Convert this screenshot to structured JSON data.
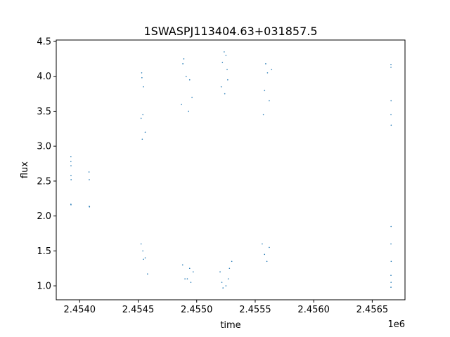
{
  "chart_data": {
    "type": "scatter",
    "title": "1SWASPJ113404.63+031857.5",
    "xlabel": "time",
    "ylabel": "flux",
    "x_offset_label": "1e6",
    "xlim": [
      2453800,
      2456780
    ],
    "ylim": [
      0.8,
      4.52
    ],
    "x_ticks": [
      2454000,
      2454500,
      2455000,
      2455500,
      2456000,
      2456500
    ],
    "x_tick_labels": [
      "2.4540",
      "2.4545",
      "2.4550",
      "2.4555",
      "2.4560",
      "2.4565"
    ],
    "y_ticks": [
      1.0,
      1.5,
      2.0,
      2.5,
      3.0,
      3.5,
      4.0,
      4.5
    ],
    "y_tick_labels": [
      "1.0",
      "1.5",
      "2.0",
      "2.5",
      "3.0",
      "3.5",
      "4.0",
      "4.5"
    ],
    "grid": false,
    "legend": "none",
    "series": [
      {
        "color": "#1f77b4",
        "points": [
          [
            2453925,
            2.85
          ],
          [
            2453925,
            2.78
          ],
          [
            2453926,
            2.72
          ],
          [
            2453926,
            2.58
          ],
          [
            2453927,
            2.52
          ],
          [
            2453925,
            2.17
          ],
          [
            2453926,
            2.16
          ],
          [
            2454080,
            2.63
          ],
          [
            2454082,
            2.52
          ],
          [
            2454082,
            2.14
          ],
          [
            2454084,
            2.13
          ],
          [
            2454530,
            4.05
          ],
          [
            2454532,
            3.98
          ],
          [
            2454545,
            3.85
          ],
          [
            2454540,
            3.45
          ],
          [
            2454525,
            3.4
          ],
          [
            2454560,
            3.2
          ],
          [
            2454535,
            3.1
          ],
          [
            2454525,
            1.6
          ],
          [
            2454540,
            1.5
          ],
          [
            2454545,
            1.38
          ],
          [
            2454560,
            1.4
          ],
          [
            2454580,
            1.17
          ],
          [
            2454890,
            4.25
          ],
          [
            2454882,
            4.18
          ],
          [
            2454910,
            4.0
          ],
          [
            2454940,
            3.95
          ],
          [
            2454960,
            3.7
          ],
          [
            2454870,
            3.6
          ],
          [
            2454930,
            3.5
          ],
          [
            2454880,
            1.3
          ],
          [
            2454920,
            1.1
          ],
          [
            2454950,
            1.05
          ],
          [
            2454900,
            1.1
          ],
          [
            2454970,
            1.2
          ],
          [
            2454940,
            1.25
          ],
          [
            2455235,
            4.35
          ],
          [
            2455250,
            4.3
          ],
          [
            2455220,
            4.2
          ],
          [
            2455260,
            4.1
          ],
          [
            2455265,
            3.95
          ],
          [
            2455210,
            3.85
          ],
          [
            2455240,
            3.75
          ],
          [
            2455200,
            1.2
          ],
          [
            2455215,
            1.05
          ],
          [
            2455225,
            0.97
          ],
          [
            2455250,
            1.0
          ],
          [
            2455270,
            1.1
          ],
          [
            2455280,
            1.25
          ],
          [
            2455300,
            1.35
          ],
          [
            2455590,
            4.18
          ],
          [
            2455605,
            4.05
          ],
          [
            2455640,
            4.1
          ],
          [
            2455580,
            3.8
          ],
          [
            2455620,
            3.65
          ],
          [
            2455570,
            3.45
          ],
          [
            2455560,
            1.6
          ],
          [
            2455580,
            1.45
          ],
          [
            2455600,
            1.35
          ],
          [
            2455620,
            1.55
          ],
          [
            2456660,
            4.17
          ],
          [
            2456660,
            4.13
          ],
          [
            2456661,
            3.65
          ],
          [
            2456660,
            3.45
          ],
          [
            2456662,
            3.3
          ],
          [
            2456661,
            1.85
          ],
          [
            2456660,
            1.6
          ],
          [
            2456662,
            1.35
          ],
          [
            2456660,
            1.15
          ],
          [
            2456661,
            1.05
          ],
          [
            2456660,
            0.98
          ]
        ]
      }
    ]
  }
}
